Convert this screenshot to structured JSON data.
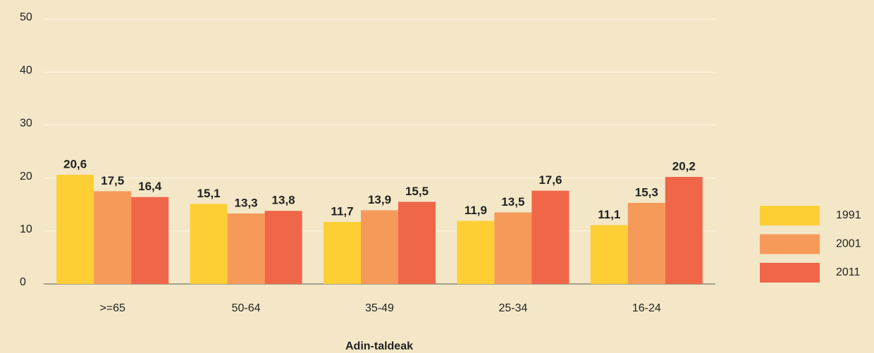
{
  "chart_data": {
    "type": "bar",
    "categories": [
      ">=65",
      "50-64",
      "35-49",
      "25-34",
      "16-24"
    ],
    "series": [
      {
        "name": "1991",
        "color": "#fecf35",
        "values": [
          20.6,
          15.1,
          11.7,
          11.9,
          11.1
        ],
        "value_labels": [
          "20,6",
          "15,1",
          "11,7",
          "11,9",
          "11,1"
        ]
      },
      {
        "name": "2001",
        "color": "#f69a5a",
        "values": [
          17.5,
          13.3,
          13.9,
          13.5,
          15.3
        ],
        "value_labels": [
          "17,5",
          "13,3",
          "13,9",
          "13,5",
          "15,3"
        ]
      },
      {
        "name": "2011",
        "color": "#f06649",
        "values": [
          16.4,
          13.8,
          15.5,
          17.6,
          20.2
        ],
        "value_labels": [
          "16,4",
          "13,8",
          "15,5",
          "17,6",
          "20,2"
        ]
      }
    ],
    "x_label": "Adin-taldeak",
    "ylim": [
      0,
      50
    ],
    "yticks": [
      0,
      10,
      20,
      30,
      40,
      50
    ],
    "grid": true,
    "legend": "right"
  }
}
